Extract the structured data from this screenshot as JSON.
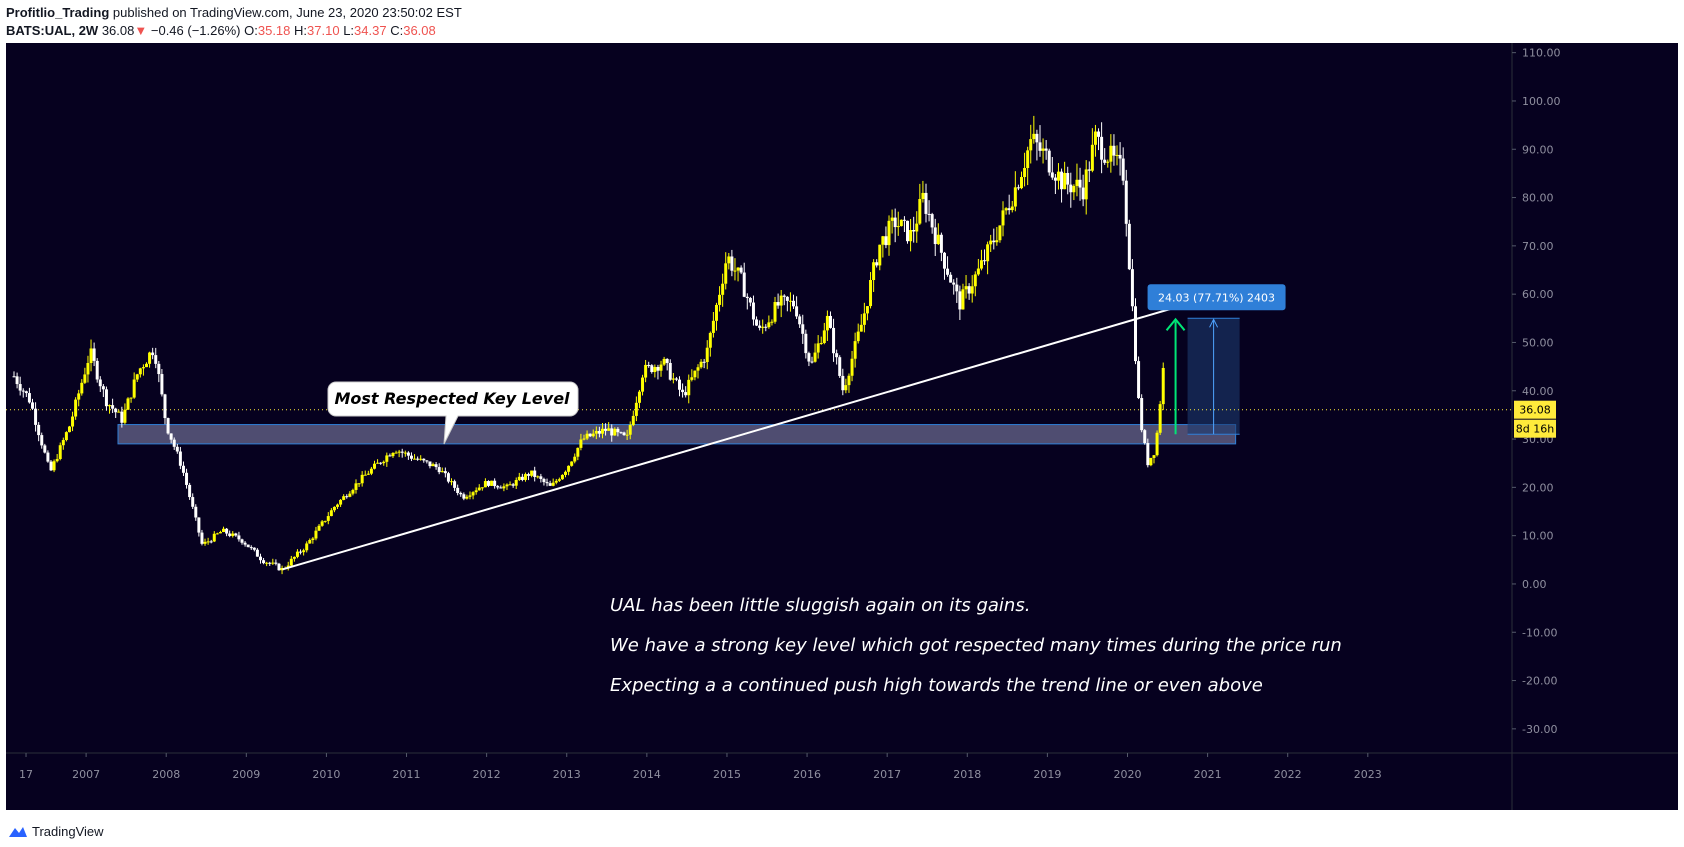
{
  "header": {
    "author": "Profitlio_Trading",
    "published_text": "published on TradingView.com, June 23, 2020 23:50:02 EST",
    "symbol_label": "BATS:UAL, 2W",
    "last_price": "36.08",
    "change_arrow": "▼",
    "change_text": "−0.46 (−1.26%)",
    "open_label": "O:",
    "open_value": "35.18",
    "high_label": "H:",
    "high_value": "37.10",
    "low_label": "L:",
    "low_value": "34.37",
    "close_label": "C:",
    "close_value": "36.08"
  },
  "footer": {
    "logo_text": "TradingView",
    "logo_icon": "tradingview-cloud-icon"
  },
  "colors": {
    "background": "#06011f",
    "up_candle": "#ffff00",
    "down_candle": "#ffffff",
    "zone_fill": "#8c8cb4",
    "zone_border": "#2f7fd8",
    "trendline": "#ffffff",
    "current_price_line": "#ffeb3b",
    "measure_label_bg": "#2f7fd8",
    "measure_arrow": "#00e676",
    "axis_text": "#8f8f9f"
  },
  "chart_data": {
    "type": "candlestick",
    "symbol": "BATS:UAL",
    "interval": "2W",
    "y_axis": {
      "ylim": [
        -35,
        112
      ],
      "ticks": [
        "110.00",
        "100.00",
        "90.00",
        "80.00",
        "70.00",
        "60.00",
        "50.00",
        "40.00",
        "30.00",
        "20.00",
        "10.00",
        "0.00",
        "-10.00",
        "-20.00",
        "-30.00"
      ],
      "tick_values": [
        110,
        100,
        90,
        80,
        70,
        60,
        50,
        40,
        30,
        20,
        10,
        0,
        -10,
        -20,
        -30
      ]
    },
    "x_axis": {
      "xlim": [
        2006.0,
        2024.8
      ],
      "ticks": [
        "17",
        "2007",
        "2008",
        "2009",
        "2010",
        "2011",
        "2012",
        "2013",
        "2014",
        "2015",
        "2016",
        "2017",
        "2018",
        "2019",
        "2020",
        "2021",
        "2022",
        "2023"
      ],
      "tick_values": [
        2006.25,
        2007,
        2008,
        2009,
        2010,
        2011,
        2012,
        2013,
        2014,
        2015,
        2016,
        2017,
        2018,
        2019,
        2020,
        2021,
        2022,
        2023
      ]
    },
    "price_path": [
      [
        2006.1,
        43
      ],
      [
        2006.3,
        38
      ],
      [
        2006.55,
        23
      ],
      [
        2006.8,
        33
      ],
      [
        2007.05,
        48
      ],
      [
        2007.25,
        38
      ],
      [
        2007.45,
        34
      ],
      [
        2007.65,
        44
      ],
      [
        2007.85,
        49
      ],
      [
        2008.0,
        33
      ],
      [
        2008.2,
        24
      ],
      [
        2008.45,
        8
      ],
      [
        2008.7,
        11
      ],
      [
        2008.95,
        9
      ],
      [
        2009.2,
        5
      ],
      [
        2009.45,
        3
      ],
      [
        2009.75,
        8
      ],
      [
        2010.1,
        16
      ],
      [
        2010.45,
        22
      ],
      [
        2010.85,
        28
      ],
      [
        2011.1,
        26
      ],
      [
        2011.4,
        24
      ],
      [
        2011.7,
        18
      ],
      [
        2012.0,
        21
      ],
      [
        2012.25,
        20
      ],
      [
        2012.55,
        23
      ],
      [
        2012.8,
        20
      ],
      [
        2013.0,
        24
      ],
      [
        2013.2,
        30
      ],
      [
        2013.5,
        32
      ],
      [
        2013.75,
        30
      ],
      [
        2013.95,
        44
      ],
      [
        2014.2,
        46
      ],
      [
        2014.45,
        39
      ],
      [
        2014.75,
        48
      ],
      [
        2015.0,
        68
      ],
      [
        2015.2,
        62
      ],
      [
        2015.4,
        52
      ],
      [
        2015.65,
        58
      ],
      [
        2015.85,
        58
      ],
      [
        2016.05,
        45
      ],
      [
        2016.25,
        55
      ],
      [
        2016.45,
        40
      ],
      [
        2016.7,
        55
      ],
      [
        2016.9,
        70
      ],
      [
        2017.1,
        75
      ],
      [
        2017.3,
        72
      ],
      [
        2017.45,
        80
      ],
      [
        2017.65,
        70
      ],
      [
        2017.9,
        58
      ],
      [
        2018.15,
        65
      ],
      [
        2018.35,
        72
      ],
      [
        2018.6,
        82
      ],
      [
        2018.8,
        92
      ],
      [
        2019.0,
        88
      ],
      [
        2019.2,
        83
      ],
      [
        2019.45,
        82
      ],
      [
        2019.6,
        92
      ],
      [
        2019.8,
        88
      ],
      [
        2019.95,
        85
      ],
      [
        2020.05,
        60
      ],
      [
        2020.15,
        35
      ],
      [
        2020.25,
        25
      ],
      [
        2020.35,
        28
      ],
      [
        2020.45,
        45
      ],
      [
        2020.48,
        36.08
      ]
    ],
    "price_range": {
      "high": 97.8,
      "low": 2.8
    },
    "current_price": 36.08,
    "current_price_label": "36.08",
    "countdown_label": "8d 16h",
    "key_level_zone": {
      "low": 29,
      "high": 33,
      "x_start": 2006.0,
      "x_end": 2021.35
    },
    "trendline": {
      "x1": 2009.45,
      "y1": 3,
      "x2": 2020.55,
      "y2": 57
    },
    "measure": {
      "x1": 2020.75,
      "x2": 2021.4,
      "y1": 31,
      "y2": 55,
      "label": "24.03 (77.71%) 2403"
    },
    "annotations": {
      "callout": "Most Respected Key Level",
      "notes": [
        "UAL has been little sluggish again on its gains.",
        "We have a strong key level which got respected many times during the price run",
        "Expecting a a continued push high towards the trend line or even above"
      ]
    }
  }
}
